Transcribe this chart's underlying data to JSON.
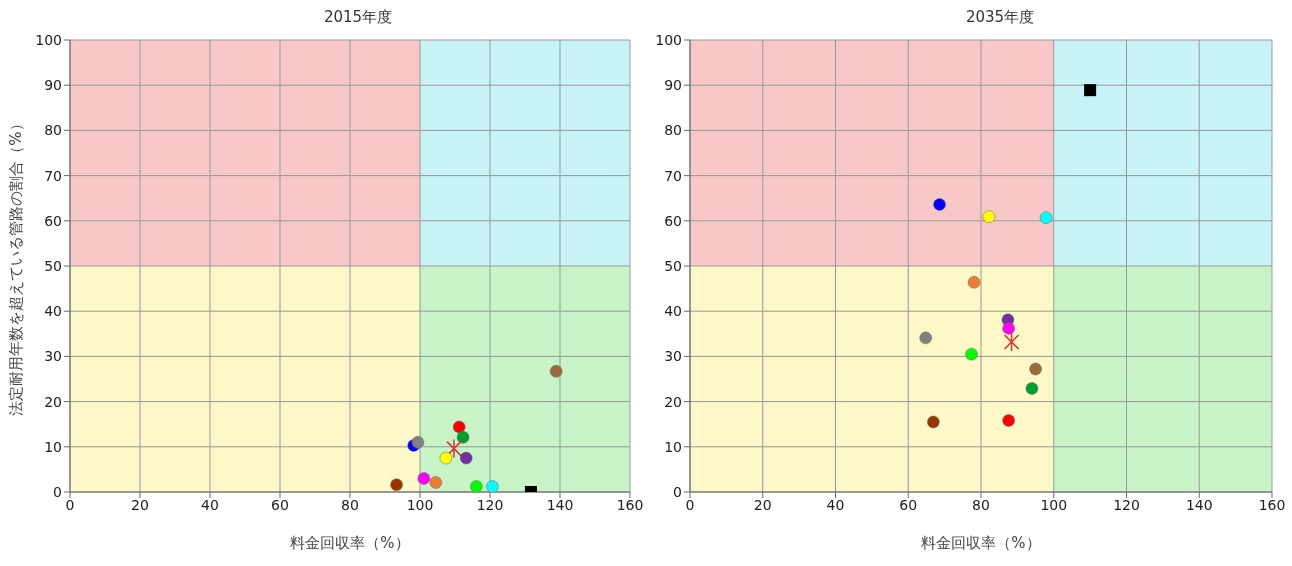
{
  "chart_data": [
    {
      "type": "scatter",
      "title": "2015年度",
      "xlabel": "料金回収率（%）",
      "ylabel": "法定耐用年数を超えている管路の割合（%）",
      "xlim": [
        0,
        160
      ],
      "ylim": [
        0,
        100
      ],
      "xticks": [
        0,
        20,
        40,
        60,
        80,
        100,
        120,
        140,
        160
      ],
      "yticks": [
        0,
        10,
        20,
        30,
        40,
        50,
        60,
        70,
        80,
        90,
        100
      ],
      "grid": true,
      "legend": false,
      "marker": "circle",
      "bands": [
        {
          "axis": "x",
          "from": 100,
          "to": 160
        },
        {
          "axis": "y",
          "from": 50,
          "to": 100
        }
      ],
      "series": [
        {
          "color": "#0000ff",
          "x": [
            98.2
          ],
          "values": [
            10.3
          ]
        },
        {
          "color": "#808080",
          "x": [
            99.4
          ],
          "values": [
            11.0
          ]
        },
        {
          "color": "#ff0000",
          "x": [
            111.2
          ],
          "values": [
            14.4
          ]
        },
        {
          "color": "#00a030",
          "x": [
            112.3
          ],
          "values": [
            12.1
          ]
        },
        {
          "color": "#e03030",
          "marker": "cross",
          "x": [
            109.7
          ],
          "values": [
            9.6
          ]
        },
        {
          "color": "#ffff00",
          "x": [
            107.4
          ],
          "values": [
            7.5
          ]
        },
        {
          "color": "#7030a0",
          "x": [
            113.2
          ],
          "values": [
            7.5
          ]
        },
        {
          "color": "#ff00ff",
          "x": [
            101.1
          ],
          "values": [
            3.0
          ]
        },
        {
          "color": "#ed7d31",
          "x": [
            104.5
          ],
          "values": [
            2.1
          ]
        },
        {
          "color": "#993300",
          "x": [
            93.3
          ],
          "values": [
            1.6
          ]
        },
        {
          "color": "#00ff00",
          "x": [
            116.1
          ],
          "values": [
            1.2
          ]
        },
        {
          "color": "#00ffff",
          "x": [
            120.7
          ],
          "values": [
            1.2
          ]
        },
        {
          "color": "#000000",
          "marker": "square",
          "x": [
            131.7
          ],
          "values": [
            0
          ]
        },
        {
          "color": "#9c6a3c",
          "x": [
            138.9
          ],
          "values": [
            26.7
          ]
        }
      ]
    },
    {
      "type": "scatter",
      "title": "2035年度",
      "xlabel": "料金回収率（%）",
      "xlim": [
        0,
        160
      ],
      "ylim": [
        0,
        100
      ],
      "xticks": [
        0,
        20,
        40,
        60,
        80,
        100,
        120,
        140,
        160
      ],
      "yticks": [
        0,
        10,
        20,
        30,
        40,
        50,
        60,
        70,
        80,
        90,
        100
      ],
      "grid": true,
      "legend": false,
      "marker": "circle",
      "bands": [
        {
          "axis": "x",
          "from": 100,
          "to": 160
        },
        {
          "axis": "y",
          "from": 50,
          "to": 100
        }
      ],
      "series": [
        {
          "color": "#0000ff",
          "x": [
            68.6
          ],
          "values": [
            63.6
          ]
        },
        {
          "color": "#808080",
          "x": [
            64.8
          ],
          "values": [
            34.1
          ]
        },
        {
          "color": "#ff0000",
          "x": [
            87.6
          ],
          "values": [
            15.8
          ]
        },
        {
          "color": "#00a030",
          "x": [
            94.0
          ],
          "values": [
            22.9
          ]
        },
        {
          "color": "#e03030",
          "marker": "cross",
          "x": [
            88.4
          ],
          "values": [
            33.2
          ]
        },
        {
          "color": "#ffff00",
          "x": [
            82.2
          ],
          "values": [
            60.9
          ]
        },
        {
          "color": "#7030a0",
          "x": [
            87.4
          ],
          "values": [
            38.1
          ]
        },
        {
          "color": "#ff00ff",
          "x": [
            87.6
          ],
          "values": [
            36.2
          ]
        },
        {
          "color": "#ed7d31",
          "x": [
            78.1
          ],
          "values": [
            46.4
          ]
        },
        {
          "color": "#993300",
          "x": [
            66.9
          ],
          "values": [
            15.5
          ]
        },
        {
          "color": "#00ff00",
          "x": [
            77.4
          ],
          "values": [
            30.5
          ]
        },
        {
          "color": "#00ffff",
          "x": [
            97.9
          ],
          "values": [
            60.7
          ]
        },
        {
          "color": "#000000",
          "marker": "square",
          "x": [
            110.0
          ],
          "values": [
            88.9
          ]
        },
        {
          "color": "#9c6a3c",
          "x": [
            95.0
          ],
          "values": [
            27.2
          ]
        }
      ]
    }
  ]
}
